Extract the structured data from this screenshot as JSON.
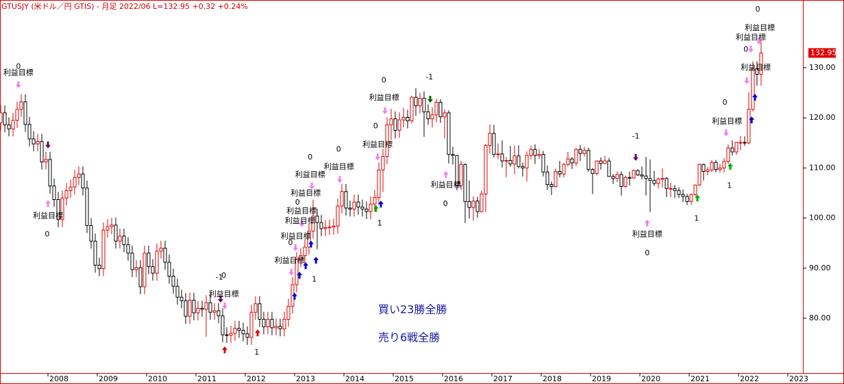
{
  "chart_data": {
    "type": "candlestick",
    "title": "GTUSJY (米ドル／円 GTIS) - 月足  2022/06  L=132.95  +0.32   +0.24%",
    "up_color": "#dd0000",
    "down_color": "#000000",
    "open": [
      119.0,
      121.0,
      118.6,
      117.8,
      119.5,
      121.7,
      123.2,
      118.7,
      115.8,
      114.8,
      115.3,
      111.2,
      111.7,
      106.4,
      103.7,
      99.7,
      104.0,
      105.5,
      106.2,
      108.1,
      108.8,
      106.0,
      98.5,
      95.4,
      90.6,
      89.9,
      97.6,
      98.3,
      98.6,
      95.4,
      96.4,
      94.7,
      93.0,
      89.7,
      90.1,
      86.3,
      93.0,
      90.3,
      89.0,
      93.4,
      94.0,
      91.2,
      88.4,
      86.4,
      84.2,
      83.5,
      80.4,
      83.6,
      81.1,
      82.0,
      81.8,
      83.1,
      81.2,
      81.5,
      80.5,
      76.7,
      76.6,
      77.0,
      78.0,
      77.6,
      76.9,
      76.2,
      81.2,
      82.9,
      79.8,
      78.3,
      79.8,
      78.1,
      78.4,
      77.9,
      79.8,
      82.4,
      86.7,
      91.7,
      92.5,
      94.2,
      97.4,
      100.4,
      99.1,
      97.9,
      98.1,
      98.2,
      98.4,
      102.4,
      105.3,
      102.0,
      101.8,
      103.2,
      102.2,
      101.8,
      101.3,
      102.8,
      104.1,
      109.6,
      112.3,
      118.6,
      119.8,
      117.5,
      119.6,
      120.1,
      119.4,
      124.1,
      122.4,
      123.9,
      121.2,
      119.8,
      120.6,
      123.1,
      120.2,
      121.0,
      112.7,
      112.5,
      106.5,
      110.7,
      103.3,
      102.1,
      103.4,
      101.3,
      104.8,
      114.5,
      116.9,
      112.7,
      112.8,
      111.4,
      111.5,
      110.8,
      112.4,
      110.3,
      110.0,
      112.5,
      113.7,
      112.5,
      112.7,
      109.2,
      106.7,
      106.3,
      109.3,
      108.8,
      110.7,
      111.8,
      111.0,
      113.7,
      112.9,
      113.5,
      109.7,
      108.9,
      111.4,
      110.9,
      111.4,
      108.3,
      107.9,
      108.7,
      106.3,
      108.1,
      108.0,
      109.5,
      108.6,
      108.4,
      107.9,
      107.5,
      106.9,
      107.8,
      107.9,
      105.9,
      105.9,
      105.5,
      104.7,
      104.3,
      103.3,
      104.7,
      106.6,
      110.7,
      109.3,
      109.6,
      111.1,
      109.7,
      110.0,
      111.3,
      114.0,
      113.2,
      115.1,
      115.1,
      115.0,
      121.7,
      129.8,
      128.7
    ],
    "high": [
      122.5,
      122.5,
      120.1,
      121.0,
      123.2,
      124.7,
      124.7,
      120.2,
      117.3,
      116.8,
      116.8,
      113.2,
      113.2,
      107.9,
      105.2,
      105.5,
      107.0,
      107.7,
      109.6,
      110.3,
      110.3,
      107.5,
      100.0,
      96.9,
      92.1,
      99.1,
      99.8,
      100.1,
      100.1,
      97.9,
      97.9,
      96.2,
      94.5,
      91.6,
      91.6,
      94.5,
      94.5,
      91.8,
      94.9,
      95.5,
      95.5,
      92.7,
      89.9,
      87.9,
      85.7,
      85.0,
      85.1,
      85.1,
      83.5,
      83.5,
      84.6,
      84.6,
      83.0,
      83.0,
      82.0,
      78.2,
      78.5,
      79.5,
      79.5,
      79.1,
      78.4,
      82.7,
      84.4,
      84.4,
      81.3,
      81.3,
      81.3,
      79.9,
      79.9,
      81.3,
      83.9,
      88.2,
      93.2,
      94.0,
      95.7,
      98.9,
      103.7,
      101.9,
      100.6,
      99.6,
      99.7,
      99.9,
      103.9,
      106.8,
      106.8,
      103.5,
      104.7,
      104.7,
      103.7,
      103.3,
      104.3,
      105.6,
      111.1,
      113.8,
      120.1,
      121.8,
      121.3,
      121.1,
      122.0,
      121.6,
      124.4,
      125.9,
      125.0,
      125.3,
      122.7,
      122.1,
      123.8,
      123.7,
      121.7,
      121.5,
      114.2,
      112.6,
      111.4,
      110.9,
      107.5,
      104.3,
      104.2,
      105.5,
      114.8,
      118.7,
      118.6,
      114.9,
      115.5,
      112.2,
      114.4,
      114.5,
      114.5,
      111.1,
      113.3,
      114.5,
      114.7,
      113.8,
      113.4,
      110.5,
      107.3,
      109.9,
      111.4,
      111.0,
      113.2,
      112.2,
      114.0,
      114.6,
      114.2,
      114.0,
      110.0,
      111.5,
      112.1,
      112.4,
      112.0,
      108.8,
      109.3,
      109.3,
      108.5,
      109.3,
      109.7,
      109.7,
      110.3,
      112.2,
      111.7,
      109.4,
      108.1,
      109.9,
      108.2,
      107.1,
      106.6,
      106.1,
      105.7,
      104.8,
      104.9,
      106.7,
      110.9,
      110.9,
      110.2,
      111.6,
      111.6,
      110.8,
      112.0,
      114.7,
      115.5,
      115.2,
      116.4,
      116.3,
      125.1,
      131.3,
      131.3,
      135.6
    ],
    "low": [
      117.5,
      117.1,
      116.3,
      116.3,
      118.0,
      120.2,
      117.2,
      114.3,
      113.3,
      113.3,
      109.7,
      109.7,
      104.9,
      102.2,
      98.2,
      98.2,
      102.5,
      104.0,
      104.7,
      106.6,
      104.5,
      97.0,
      93.9,
      89.1,
      88.4,
      88.4,
      96.1,
      96.8,
      93.9,
      93.9,
      93.2,
      91.5,
      88.2,
      88.2,
      84.8,
      84.8,
      88.8,
      87.5,
      87.5,
      91.9,
      89.7,
      86.9,
      84.9,
      82.7,
      82.0,
      78.9,
      78.9,
      79.6,
      79.6,
      80.3,
      76.3,
      79.7,
      79.7,
      79.0,
      75.2,
      75.1,
      75.1,
      75.5,
      76.1,
      75.4,
      74.7,
      74.7,
      79.7,
      78.3,
      76.8,
      76.8,
      76.6,
      76.6,
      76.4,
      76.4,
      78.3,
      80.9,
      85.2,
      90.2,
      91.0,
      92.7,
      95.9,
      93.8,
      96.4,
      96.4,
      96.6,
      96.7,
      96.9,
      100.9,
      100.5,
      100.3,
      100.3,
      100.7,
      100.3,
      99.8,
      99.8,
      101.3,
      102.6,
      105.2,
      110.8,
      115.6,
      115.9,
      116.0,
      118.1,
      117.9,
      118.9,
      120.4,
      120.9,
      116.2,
      118.6,
      118.1,
      119.1,
      119.0,
      115.9,
      110.9,
      110.7,
      105.5,
      105.6,
      99.0,
      99.9,
      99.5,
      100.1,
      101.1,
      101.2,
      112.9,
      112.1,
      111.7,
      110.1,
      108.1,
      110.2,
      108.8,
      109.9,
      108.3,
      107.3,
      111.7,
      110.8,
      111.8,
      108.3,
      105.6,
      104.6,
      106.1,
      108.1,
      108.1,
      110.3,
      109.8,
      110.4,
      111.4,
      112.3,
      109.2,
      104.8,
      108.5,
      109.7,
      110.8,
      108.3,
      106.8,
      107.2,
      104.5,
      106.0,
      106.5,
      107.9,
      108.4,
      107.7,
      104.5,
      101.2,
      106.4,
      105.9,
      106.1,
      104.2,
      104.2,
      104.0,
      104.0,
      103.2,
      102.6,
      102.6,
      104.4,
      106.4,
      107.5,
      108.6,
      109.2,
      109.1,
      109.1,
      109.1,
      110.8,
      112.5,
      112.6,
      113.5,
      114.4,
      114.7,
      121.3,
      126.4,
      126.4
    ],
    "close": [
      121.0,
      118.6,
      117.8,
      119.5,
      121.7,
      123.2,
      118.7,
      115.8,
      114.8,
      115.3,
      111.2,
      111.7,
      106.4,
      103.7,
      99.7,
      104.0,
      105.5,
      106.2,
      108.1,
      108.8,
      106.0,
      98.5,
      95.4,
      90.6,
      89.9,
      97.6,
      98.3,
      98.6,
      95.4,
      96.4,
      94.7,
      93.0,
      89.7,
      90.1,
      86.3,
      93.0,
      90.3,
      89.0,
      93.4,
      94.0,
      91.2,
      88.4,
      86.4,
      84.2,
      83.5,
      80.4,
      83.6,
      81.1,
      82.0,
      81.8,
      83.1,
      81.2,
      81.5,
      80.5,
      76.7,
      76.6,
      77.0,
      78.0,
      77.6,
      76.9,
      76.2,
      81.2,
      82.9,
      79.8,
      78.3,
      79.8,
      78.1,
      78.4,
      77.9,
      79.8,
      82.4,
      86.7,
      91.7,
      92.5,
      94.2,
      97.4,
      100.4,
      99.1,
      97.9,
      98.1,
      98.2,
      98.4,
      102.4,
      105.3,
      102.0,
      101.8,
      103.2,
      102.2,
      101.8,
      101.3,
      102.8,
      104.1,
      109.6,
      112.3,
      118.6,
      119.8,
      117.5,
      119.6,
      120.1,
      119.4,
      124.1,
      122.4,
      123.9,
      121.2,
      119.8,
      120.6,
      123.1,
      120.2,
      121.0,
      112.7,
      112.5,
      106.5,
      110.7,
      103.3,
      102.1,
      103.4,
      101.3,
      104.8,
      114.5,
      116.9,
      112.7,
      112.8,
      111.4,
      111.5,
      110.8,
      112.4,
      110.3,
      110.0,
      112.5,
      113.7,
      112.5,
      112.7,
      109.2,
      106.7,
      106.3,
      109.3,
      108.8,
      110.7,
      111.8,
      111.0,
      113.7,
      112.9,
      113.5,
      109.7,
      108.9,
      111.4,
      110.9,
      111.4,
      108.3,
      107.9,
      108.7,
      106.3,
      108.1,
      108.0,
      109.5,
      108.6,
      108.4,
      107.9,
      107.5,
      106.9,
      107.8,
      107.9,
      105.9,
      105.9,
      105.5,
      104.7,
      104.3,
      103.3,
      104.7,
      106.6,
      110.7,
      109.3,
      109.6,
      111.1,
      109.7,
      110.0,
      111.3,
      114.0,
      113.2,
      115.1,
      115.1,
      115.0,
      121.7,
      129.8,
      128.7,
      132.95
    ],
    "xlim": [
      -0.17,
      195.17
    ],
    "ylim": [
      69.07,
      143.52
    ],
    "yticks": [
      {
        "value": 80,
        "label": "80.00"
      },
      {
        "value": 90,
        "label": "90.00"
      },
      {
        "value": 100,
        "label": "100.00"
      },
      {
        "value": 110,
        "label": "110.00"
      },
      {
        "value": 120,
        "label": "120.00"
      },
      {
        "value": 130,
        "label": "130.00"
      }
    ],
    "xticks": [
      {
        "value": 11.5,
        "label": "2008"
      },
      {
        "value": 23.5,
        "label": "2009"
      },
      {
        "value": 35.5,
        "label": "2010"
      },
      {
        "value": 47.5,
        "label": "2011"
      },
      {
        "value": 59.5,
        "label": "2012"
      },
      {
        "value": 71.5,
        "label": "2013"
      },
      {
        "value": 83.5,
        "label": "2014"
      },
      {
        "value": 95.5,
        "label": "2015"
      },
      {
        "value": 107.5,
        "label": "2016"
      },
      {
        "value": 119.5,
        "label": "2017"
      },
      {
        "value": 131.5,
        "label": "2018"
      },
      {
        "value": 143.5,
        "label": "2019"
      },
      {
        "value": 155.5,
        "label": "2020"
      },
      {
        "value": 167.5,
        "label": "2021"
      },
      {
        "value": 179.5,
        "label": "2022"
      },
      {
        "value": 191.5,
        "label": "2023"
      }
    ],
    "annotations": [
      {
        "text": "0",
        "x": 4.3,
        "y": 130.2
      },
      {
        "text": "利益目標",
        "x": 4.3,
        "y": 129.0
      },
      {
        "text": "利益目標",
        "x": 11.5,
        "y": 100.4
      },
      {
        "text": "0",
        "x": 11.3,
        "y": 96.7
      },
      {
        "text": "-1",
        "x": 53.2,
        "y": 88.1
      },
      {
        "text": "0",
        "x": 54.3,
        "y": 88.5
      },
      {
        "text": "利益目標",
        "x": 54.3,
        "y": 84.8
      },
      {
        "text": "1",
        "x": 62.3,
        "y": 73.2
      },
      {
        "text": "利益目標",
        "x": 70.3,
        "y": 91.5
      },
      {
        "text": "1",
        "x": 76.3,
        "y": 87.7
      },
      {
        "text": "利益目標",
        "x": 71.8,
        "y": 96.3
      },
      {
        "text": "0",
        "x": 70.5,
        "y": 95.0
      },
      {
        "text": "利益目標",
        "x": 72.8,
        "y": 99.4
      },
      {
        "text": "利益目標",
        "x": 73.2,
        "y": 101.4
      },
      {
        "text": "0",
        "x": 72.2,
        "y": 103.1
      },
      {
        "text": "利益目標",
        "x": 74.2,
        "y": 104.9
      },
      {
        "text": "利益目標",
        "x": 75.3,
        "y": 108.6
      },
      {
        "text": "0",
        "x": 75.3,
        "y": 112.1
      },
      {
        "text": "利益目標",
        "x": 82.3,
        "y": 110.2
      },
      {
        "text": "0",
        "x": 82.2,
        "y": 113.7
      },
      {
        "text": "利益目標",
        "x": 91.7,
        "y": 114.6
      },
      {
        "text": "1",
        "x": 92.2,
        "y": 98.9
      },
      {
        "text": "0",
        "x": 91.2,
        "y": 118.3
      },
      {
        "text": "利益目標",
        "x": 93.3,
        "y": 124.0
      },
      {
        "text": "0",
        "x": 93.2,
        "y": 127.5
      },
      {
        "text": "-1",
        "x": 104.3,
        "y": 128.1
      },
      {
        "text": "利益目標",
        "x": 108.3,
        "y": 106.6
      },
      {
        "text": "0",
        "x": 108.2,
        "y": 102.8
      },
      {
        "text": "-1",
        "x": 154.5,
        "y": 116.3
      },
      {
        "text": "利益目標",
        "x": 157.3,
        "y": 96.7
      },
      {
        "text": "0",
        "x": 157.3,
        "y": 93.0
      },
      {
        "text": "1",
        "x": 169.3,
        "y": 99.9
      },
      {
        "text": "0",
        "x": 176.2,
        "y": 123.0
      },
      {
        "text": "利益目標",
        "x": 176.7,
        "y": 119.3
      },
      {
        "text": "1",
        "x": 177.3,
        "y": 106.4
      },
      {
        "text": "利益目標",
        "x": 183.7,
        "y": 130.0
      },
      {
        "text": "0",
        "x": 181.3,
        "y": 133.6
      },
      {
        "text": "利益目標",
        "x": 182.5,
        "y": 136.0
      },
      {
        "text": "利益目標",
        "x": 184.7,
        "y": 137.9
      },
      {
        "text": "0",
        "x": 184.2,
        "y": 141.6
      }
    ],
    "signals": [
      {
        "x": 4.3,
        "y": 126.6,
        "dir": "down",
        "color": "#ee82ee"
      },
      {
        "x": 11.5,
        "y": 114.6,
        "dir": "down",
        "color": "#660066"
      },
      {
        "x": 11.5,
        "y": 102.9,
        "dir": "up",
        "color": "#ee82ee"
      },
      {
        "x": 53.5,
        "y": 83.8,
        "dir": "down",
        "color": "#660066"
      },
      {
        "x": 54.5,
        "y": 82.5,
        "dir": "down",
        "color": "#ee82ee"
      },
      {
        "x": 54.5,
        "y": 73.7,
        "dir": "up",
        "color": "#dd0000"
      },
      {
        "x": 62.5,
        "y": 77.1,
        "dir": "up",
        "color": "#dd0000"
      },
      {
        "x": 71.5,
        "y": 84.4,
        "dir": "up",
        "color": "#0000cc"
      },
      {
        "x": 70.7,
        "y": 89.2,
        "dir": "down",
        "color": "#ee82ee"
      },
      {
        "x": 72.7,
        "y": 88.6,
        "dir": "up",
        "color": "#0000cc"
      },
      {
        "x": 74.2,
        "y": 90.5,
        "dir": "up",
        "color": "#0000cc"
      },
      {
        "x": 76.7,
        "y": 91.6,
        "dir": "up",
        "color": "#0000cc"
      },
      {
        "x": 71.7,
        "y": 94.1,
        "dir": "down",
        "color": "#ee82ee"
      },
      {
        "x": 75.5,
        "y": 94.8,
        "dir": "up",
        "color": "#0000cc"
      },
      {
        "x": 73.3,
        "y": 98.9,
        "dir": "down",
        "color": "#ee82ee"
      },
      {
        "x": 75.7,
        "y": 106.4,
        "dir": "down",
        "color": "#ee82ee"
      },
      {
        "x": 82.5,
        "y": 107.7,
        "dir": "down",
        "color": "#ee82ee"
      },
      {
        "x": 91.3,
        "y": 101.9,
        "dir": "up",
        "color": "#00aa00"
      },
      {
        "x": 92.5,
        "y": 102.8,
        "dir": "up",
        "color": "#0000cc"
      },
      {
        "x": 91.7,
        "y": 112.2,
        "dir": "down",
        "color": "#ee82ee"
      },
      {
        "x": 93.5,
        "y": 121.4,
        "dir": "down",
        "color": "#ee82ee"
      },
      {
        "x": 104.5,
        "y": 123.7,
        "dir": "down",
        "color": "#006600"
      },
      {
        "x": 108.3,
        "y": 108.7,
        "dir": "up",
        "color": "#ee82ee"
      },
      {
        "x": 154.5,
        "y": 112.1,
        "dir": "down",
        "color": "#660066"
      },
      {
        "x": 157.3,
        "y": 99.0,
        "dir": "up",
        "color": "#ee82ee"
      },
      {
        "x": 169.5,
        "y": 104.0,
        "dir": "up",
        "color": "#00aa00"
      },
      {
        "x": 176.5,
        "y": 117.0,
        "dir": "down",
        "color": "#ee82ee"
      },
      {
        "x": 177.5,
        "y": 110.3,
        "dir": "up",
        "color": "#00aa00"
      },
      {
        "x": 182.7,
        "y": 119.6,
        "dir": "up",
        "color": "#0000cc"
      },
      {
        "x": 183.5,
        "y": 124.1,
        "dir": "up",
        "color": "#0000cc"
      },
      {
        "x": 181.5,
        "y": 127.4,
        "dir": "down",
        "color": "#ee82ee"
      },
      {
        "x": 182.5,
        "y": 133.7,
        "dir": "down",
        "color": "#ee82ee"
      },
      {
        "x": 184.5,
        "y": 135.3,
        "dir": "down",
        "color": "#ee82ee"
      }
    ],
    "notes": [
      "買い23勝全勝",
      "売り6戦全勝"
    ]
  }
}
